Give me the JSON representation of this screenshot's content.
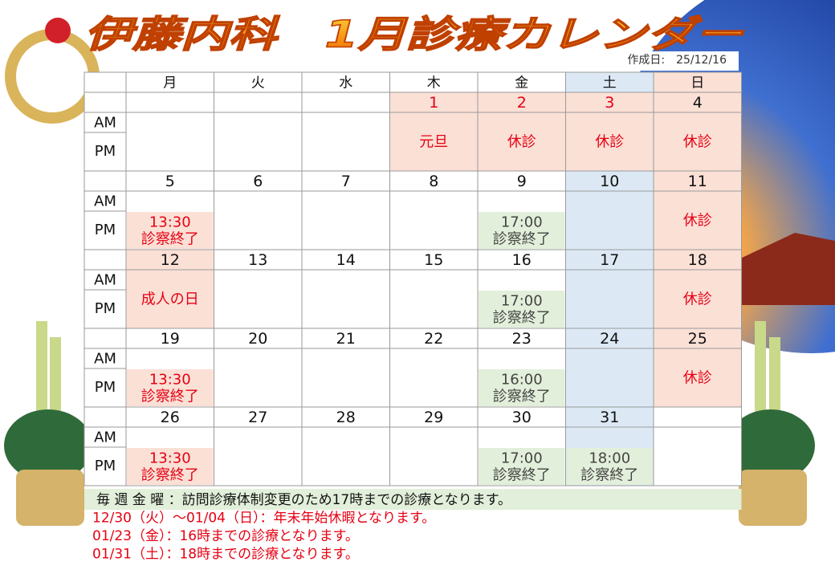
{
  "header": {
    "title": "伊藤内科　1月診療カレンダー",
    "created": "作成日:　25/12/16"
  },
  "table": {
    "columns": [
      {
        "label": "月"
      },
      {
        "label": "火"
      },
      {
        "label": "水"
      },
      {
        "label": "木"
      },
      {
        "label": "金"
      },
      {
        "label": "土",
        "fill": "#dce9f5"
      },
      {
        "label": "日",
        "fill": "#fbe0d6"
      }
    ],
    "am": "AM",
    "pm": "PM",
    "weeks": [
      {
        "days": [
          null,
          null,
          null,
          {
            "date": 1,
            "date_fill": "#fbe0d6",
            "date_color": "#e60012",
            "body_fill": "#fbe0d6",
            "note": [
              "元旦"
            ],
            "note_color": "#e60012"
          },
          {
            "date": 2,
            "date_fill": "#fbe0d6",
            "date_color": "#e60012",
            "body_fill": "#fbe0d6",
            "note": [
              "休診"
            ],
            "note_color": "#e60012"
          },
          {
            "date": 3,
            "date_fill": "#fbe0d6",
            "date_color": "#e60012",
            "body_fill": "#fbe0d6",
            "note": [
              "休診"
            ],
            "note_color": "#e60012"
          },
          {
            "date": 4,
            "note": [
              "休診"
            ],
            "note_color": "#e60012"
          }
        ]
      },
      {
        "days": [
          {
            "date": 5,
            "note": [
              "13:30",
              "診察終了"
            ],
            "note_fill": "#fbe0d6",
            "note_color": "#e60012",
            "note_span": "pm"
          },
          {
            "date": 6
          },
          {
            "date": 7
          },
          {
            "date": 8
          },
          {
            "date": 9,
            "note": [
              "17:00",
              "診察終了"
            ],
            "note_fill": "#e2efda",
            "note_color": "#444444",
            "note_span": "pm"
          },
          {
            "date": 10
          },
          {
            "date": 11,
            "note": [
              "休診"
            ],
            "note_color": "#e60012"
          }
        ]
      },
      {
        "days": [
          {
            "date": 12,
            "date_fill": "#fbe0d6",
            "body_fill": "#fbe0d6",
            "note": [
              "成人の日"
            ],
            "note_color": "#e60012"
          },
          {
            "date": 13
          },
          {
            "date": 14
          },
          {
            "date": 15
          },
          {
            "date": 16,
            "note": [
              "17:00",
              "診察終了"
            ],
            "note_fill": "#e2efda",
            "note_color": "#444444",
            "note_span": "pm"
          },
          {
            "date": 17
          },
          {
            "date": 18,
            "note": [
              "休診"
            ],
            "note_color": "#e60012"
          }
        ]
      },
      {
        "days": [
          {
            "date": 19,
            "note": [
              "13:30",
              "診察終了"
            ],
            "note_fill": "#fbe0d6",
            "note_color": "#e60012",
            "note_span": "pm"
          },
          {
            "date": 20
          },
          {
            "date": 21
          },
          {
            "date": 22
          },
          {
            "date": 23,
            "note": [
              "16:00",
              "診察終了"
            ],
            "note_fill": "#e2efda",
            "note_color": "#444444",
            "note_span": "pm"
          },
          {
            "date": 24
          },
          {
            "date": 25,
            "note": [
              "休診"
            ],
            "note_color": "#e60012"
          }
        ]
      },
      {
        "days": [
          {
            "date": 26,
            "note": [
              "13:30",
              "診察終了"
            ],
            "note_fill": "#fbe0d6",
            "note_color": "#e60012",
            "note_span": "pm"
          },
          {
            "date": 27
          },
          {
            "date": 28
          },
          {
            "date": 29
          },
          {
            "date": 30,
            "note": [
              "17:00",
              "診察終了"
            ],
            "note_fill": "#e2efda",
            "note_color": "#444444",
            "note_span": "pm"
          },
          {
            "date": 31,
            "note": [
              "18:00",
              "診察終了"
            ],
            "note_fill": "#e2efda",
            "note_color": "#444444",
            "note_span": "pm"
          },
          null
        ]
      }
    ]
  },
  "footer": {
    "lines": [
      {
        "text": "毎 週 金 曜 ：訪問診療体制変更のため17時までの診療となります。",
        "color": "#111111"
      },
      {
        "text": "12/30（火）～01/04（日）：年末年始休暇となります。",
        "color": "#e60012"
      },
      {
        "text": "01/23（金）：16時までの診療となります。",
        "color": "#e60012"
      },
      {
        "text": "01/31（土）：18時までの診療となります。",
        "color": "#e60012"
      }
    ]
  }
}
